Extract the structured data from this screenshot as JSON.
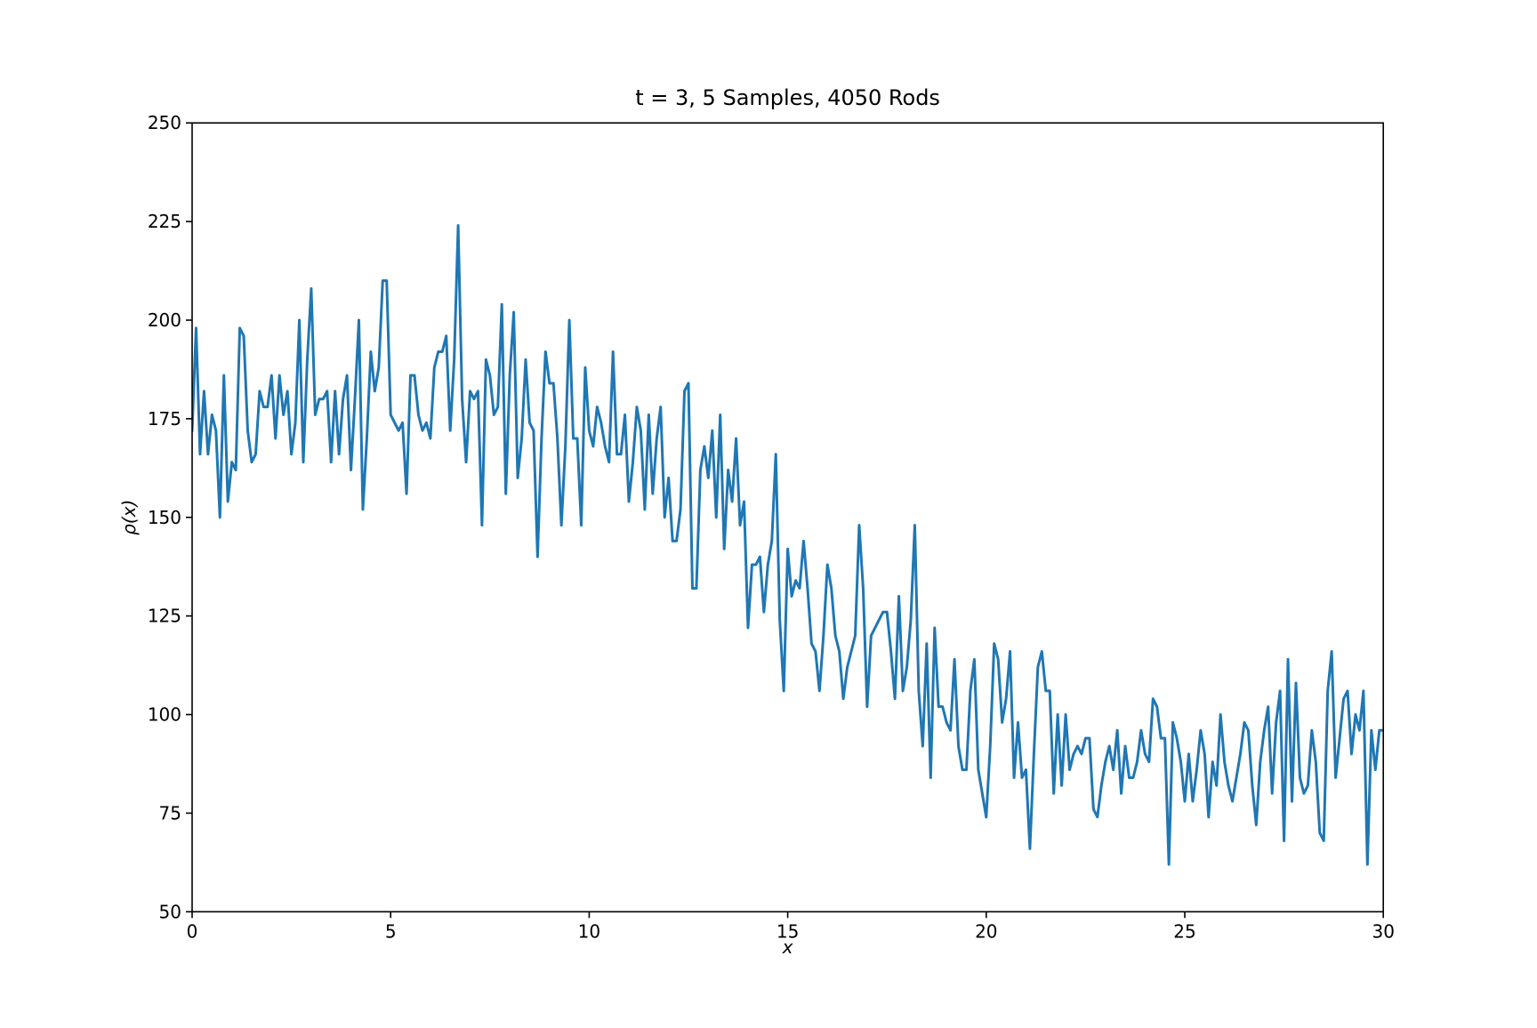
{
  "chart_data": {
    "type": "line",
    "title": "t = 3, 5 Samples, 4050 Rods",
    "xlabel": "x",
    "ylabel": "ρ(x)",
    "x": [
      0,
      0.1,
      0.2,
      0.3,
      0.4,
      0.5,
      0.6,
      0.7,
      0.8,
      0.9,
      1,
      1.1,
      1.2,
      1.3,
      1.4,
      1.5,
      1.6,
      1.7,
      1.8,
      1.9,
      2,
      2.1,
      2.2,
      2.3,
      2.4,
      2.5,
      2.6,
      2.7,
      2.8,
      2.9,
      3,
      3.1,
      3.2,
      3.3,
      3.4,
      3.5,
      3.6,
      3.7,
      3.8,
      3.9,
      4,
      4.1,
      4.2,
      4.3,
      4.4,
      4.5,
      4.6,
      4.7,
      4.8,
      4.9,
      5,
      5.1,
      5.2,
      5.3,
      5.4,
      5.5,
      5.6,
      5.7,
      5.8,
      5.9,
      6,
      6.1,
      6.2,
      6.3,
      6.4,
      6.5,
      6.6,
      6.7,
      6.8,
      6.9,
      7,
      7.1,
      7.2,
      7.3,
      7.4,
      7.5,
      7.6,
      7.7,
      7.8,
      7.9,
      8,
      8.1,
      8.2,
      8.3,
      8.4,
      8.5,
      8.6,
      8.7,
      8.8,
      8.9,
      9,
      9.1,
      9.2,
      9.3,
      9.4,
      9.5,
      9.6,
      9.7,
      9.8,
      9.9,
      10,
      10.1,
      10.2,
      10.3,
      10.4,
      10.5,
      10.6,
      10.7,
      10.8,
      10.9,
      11,
      11.1,
      11.2,
      11.3,
      11.4,
      11.5,
      11.6,
      11.7,
      11.8,
      11.9,
      12,
      12.1,
      12.2,
      12.3,
      12.4,
      12.5,
      12.6,
      12.7,
      12.8,
      12.9,
      13,
      13.1,
      13.2,
      13.3,
      13.4,
      13.5,
      13.6,
      13.7,
      13.8,
      13.9,
      14,
      14.1,
      14.2,
      14.3,
      14.4,
      14.5,
      14.6,
      14.7,
      14.8,
      14.9,
      15,
      15.1,
      15.2,
      15.3,
      15.4,
      15.5,
      15.6,
      15.7,
      15.8,
      15.9,
      16,
      16.1,
      16.2,
      16.3,
      16.4,
      16.5,
      16.6,
      16.7,
      16.8,
      16.9,
      17,
      17.1,
      17.2,
      17.3,
      17.4,
      17.5,
      17.6,
      17.7,
      17.8,
      17.9,
      18,
      18.1,
      18.2,
      18.3,
      18.4,
      18.5,
      18.6,
      18.7,
      18.8,
      18.9,
      19,
      19.1,
      19.2,
      19.3,
      19.4,
      19.5,
      19.6,
      19.7,
      19.8,
      19.9,
      20,
      20.1,
      20.2,
      20.3,
      20.4,
      20.5,
      20.6,
      20.7,
      20.8,
      20.9,
      21,
      21.1,
      21.2,
      21.3,
      21.4,
      21.5,
      21.6,
      21.7,
      21.8,
      21.9,
      22,
      22.1,
      22.2,
      22.3,
      22.4,
      22.5,
      22.6,
      22.7,
      22.8,
      22.9,
      23,
      23.1,
      23.2,
      23.3,
      23.4,
      23.5,
      23.6,
      23.7,
      23.8,
      23.9,
      24,
      24.1,
      24.2,
      24.3,
      24.4,
      24.5,
      24.6,
      24.7,
      24.8,
      24.9,
      25,
      25.1,
      25.2,
      25.3,
      25.4,
      25.5,
      25.6,
      25.7,
      25.8,
      25.9,
      26,
      26.1,
      26.2,
      26.3,
      26.4,
      26.5,
      26.6,
      26.7,
      26.8,
      26.9,
      27,
      27.1,
      27.2,
      27.3,
      27.4,
      27.5,
      27.6,
      27.7,
      27.8,
      27.9,
      28,
      28.1,
      28.2,
      28.3,
      28.4,
      28.5,
      28.6,
      28.7,
      28.8,
      28.9,
      29,
      29.1,
      29.2,
      29.3,
      29.4,
      29.5,
      29.6,
      29.7,
      29.8,
      29.9,
      30
    ],
    "series": [
      {
        "color": "#1f77b4",
        "values": [
          172,
          198,
          166,
          182,
          166,
          176,
          172,
          150,
          186,
          154,
          164,
          162,
          198,
          196,
          172,
          164,
          166,
          182,
          178,
          178,
          186,
          170,
          186,
          176,
          182,
          166,
          174,
          200,
          164,
          190,
          208,
          176,
          180,
          180,
          182,
          164,
          182,
          166,
          180,
          186,
          162,
          180,
          200,
          152,
          170,
          192,
          182,
          188,
          210,
          210,
          176,
          174,
          172,
          174,
          156,
          186,
          186,
          176,
          172,
          174,
          170,
          188,
          192,
          192,
          196,
          172,
          190,
          224,
          180,
          164,
          182,
          180,
          182,
          148,
          190,
          186,
          176,
          178,
          204,
          156,
          186,
          202,
          160,
          170,
          190,
          174,
          172,
          140,
          170,
          192,
          184,
          184,
          170,
          148,
          168,
          200,
          170,
          170,
          148,
          188,
          172,
          168,
          178,
          174,
          168,
          164,
          192,
          166,
          166,
          176,
          154,
          164,
          178,
          172,
          152,
          176,
          156,
          170,
          178,
          150,
          160,
          144,
          144,
          152,
          182,
          184,
          132,
          132,
          162,
          168,
          160,
          172,
          150,
          176,
          142,
          162,
          154,
          170,
          148,
          154,
          122,
          138,
          138,
          140,
          126,
          138,
          144,
          166,
          124,
          106,
          142,
          130,
          134,
          132,
          144,
          132,
          118,
          116,
          106,
          120,
          138,
          132,
          120,
          116,
          104,
          112,
          116,
          120,
          148,
          132,
          102,
          120,
          122,
          124,
          126,
          126,
          116,
          104,
          130,
          106,
          112,
          124,
          148,
          106,
          92,
          118,
          84,
          122,
          102,
          102,
          98,
          96,
          114,
          92,
          86,
          86,
          106,
          114,
          86,
          80,
          74,
          92,
          118,
          114,
          98,
          104,
          116,
          84,
          98,
          84,
          86,
          66,
          90,
          112,
          116,
          106,
          106,
          80,
          100,
          82,
          100,
          86,
          90,
          92,
          90,
          94,
          94,
          76,
          74,
          82,
          88,
          92,
          86,
          96,
          80,
          92,
          84,
          84,
          88,
          96,
          90,
          88,
          104,
          102,
          94,
          94,
          62,
          98,
          94,
          88,
          78,
          90,
          78,
          86,
          96,
          90,
          74,
          88,
          82,
          100,
          88,
          82,
          78,
          84,
          90,
          98,
          96,
          82,
          72,
          88,
          96,
          102,
          80,
          98,
          106,
          68,
          114,
          78,
          108,
          84,
          80,
          82,
          96,
          88,
          70,
          68,
          106,
          116,
          84,
          94,
          104,
          106,
          90,
          100,
          96,
          106,
          62,
          96,
          86,
          96,
          96
        ]
      }
    ],
    "xlim": [
      0,
      30
    ],
    "ylim": [
      50,
      250
    ],
    "xticks": [
      0,
      5,
      10,
      15,
      20,
      25,
      30
    ],
    "yticks": [
      50,
      75,
      100,
      125,
      150,
      175,
      200,
      225,
      250
    ]
  }
}
